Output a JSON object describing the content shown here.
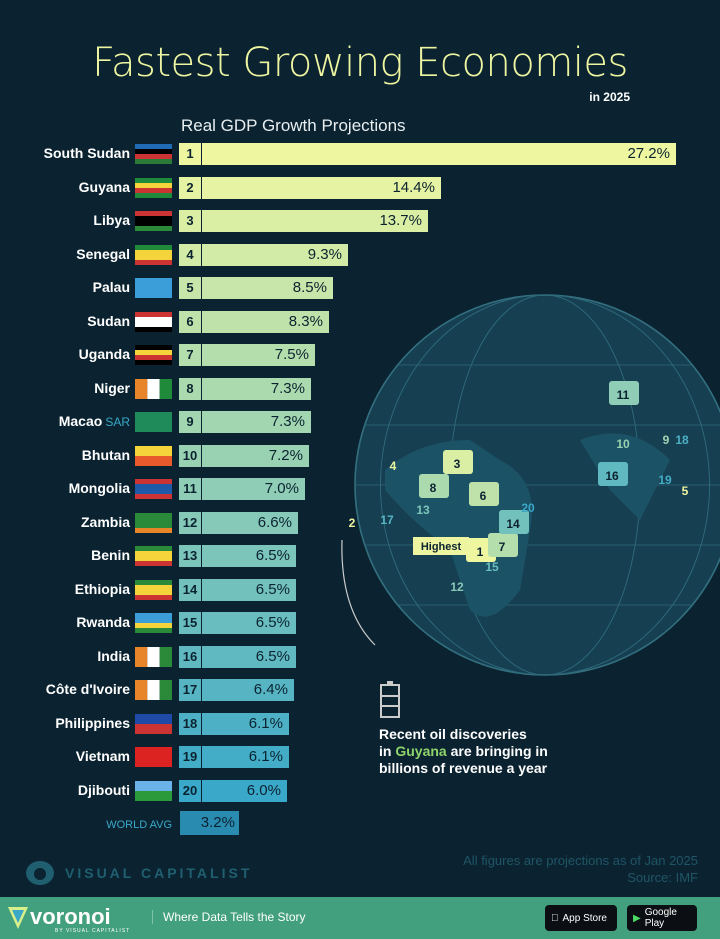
{
  "header": {
    "title": "Fastest Growing Economies",
    "subtitle": "in 2025"
  },
  "chart_data": {
    "type": "bar",
    "orientation": "horizontal",
    "title": "Fastest Growing Economies",
    "subtitle": "in 2025",
    "xlabel": "Real GDP Growth Projections",
    "unit": "%",
    "categories": [
      "South Sudan",
      "Guyana",
      "Libya",
      "Senegal",
      "Palau",
      "Sudan",
      "Uganda",
      "Niger",
      "Macao",
      "Bhutan",
      "Mongolia",
      "Zambia",
      "Benin",
      "Ethiopia",
      "Rwanda",
      "India",
      "Côte d'Ivoire",
      "Philippines",
      "Vietnam",
      "Djibouti"
    ],
    "ranks": [
      1,
      2,
      3,
      4,
      5,
      6,
      7,
      8,
      9,
      10,
      11,
      12,
      13,
      14,
      15,
      16,
      17,
      18,
      19,
      20
    ],
    "values": [
      27.2,
      14.4,
      13.7,
      9.3,
      8.5,
      8.3,
      7.5,
      7.3,
      7.3,
      7.2,
      7.0,
      6.6,
      6.5,
      6.5,
      6.5,
      6.5,
      6.4,
      6.1,
      6.1,
      6.0
    ],
    "labels": [
      "27.2%",
      "14.4%",
      "13.7%",
      "9.3%",
      "8.5%",
      "8.3%",
      "7.5%",
      "7.3%",
      "7.3%",
      "7.2%",
      "7.0%",
      "6.6%",
      "6.5%",
      "6.5%",
      "6.5%",
      "6.5%",
      "6.4%",
      "6.1%",
      "6.1%",
      "6.0%"
    ],
    "macao_suffix": "SAR",
    "world_avg": {
      "label": "WORLD AVG",
      "value": 3.2,
      "text": "3.2%"
    },
    "xlim": [
      0,
      27.2
    ],
    "grid": false,
    "colors": {
      "high": "#eef7a0",
      "low": "#3aa8c9",
      "world": "#2a8bb0"
    }
  },
  "map": {
    "highest_label": "Highest",
    "rank_labels": [
      "1",
      "2",
      "3",
      "4",
      "5",
      "6",
      "7",
      "8",
      "9",
      "10",
      "11",
      "12",
      "13",
      "14",
      "15",
      "16",
      "17",
      "18",
      "19",
      "20"
    ]
  },
  "note": {
    "line1": "Recent oil discoveries",
    "line2_pre": "in ",
    "line2_hl": "Guyana",
    "line2_post": " are bringing in",
    "line3": "billions of revenue a year",
    "icon": "oil-barrel-icon"
  },
  "footer": {
    "projection_note": "All figures are projections as of Jan 2025",
    "source": "Source: IMF",
    "brand": "VISUAL CAPITALIST"
  },
  "band": {
    "logo": "voronoi",
    "logo_sub": "BY VISUAL CAPITALIST",
    "tagline": "Where Data Tells the Story",
    "app_store": "App Store",
    "google_play": "Google Play"
  }
}
